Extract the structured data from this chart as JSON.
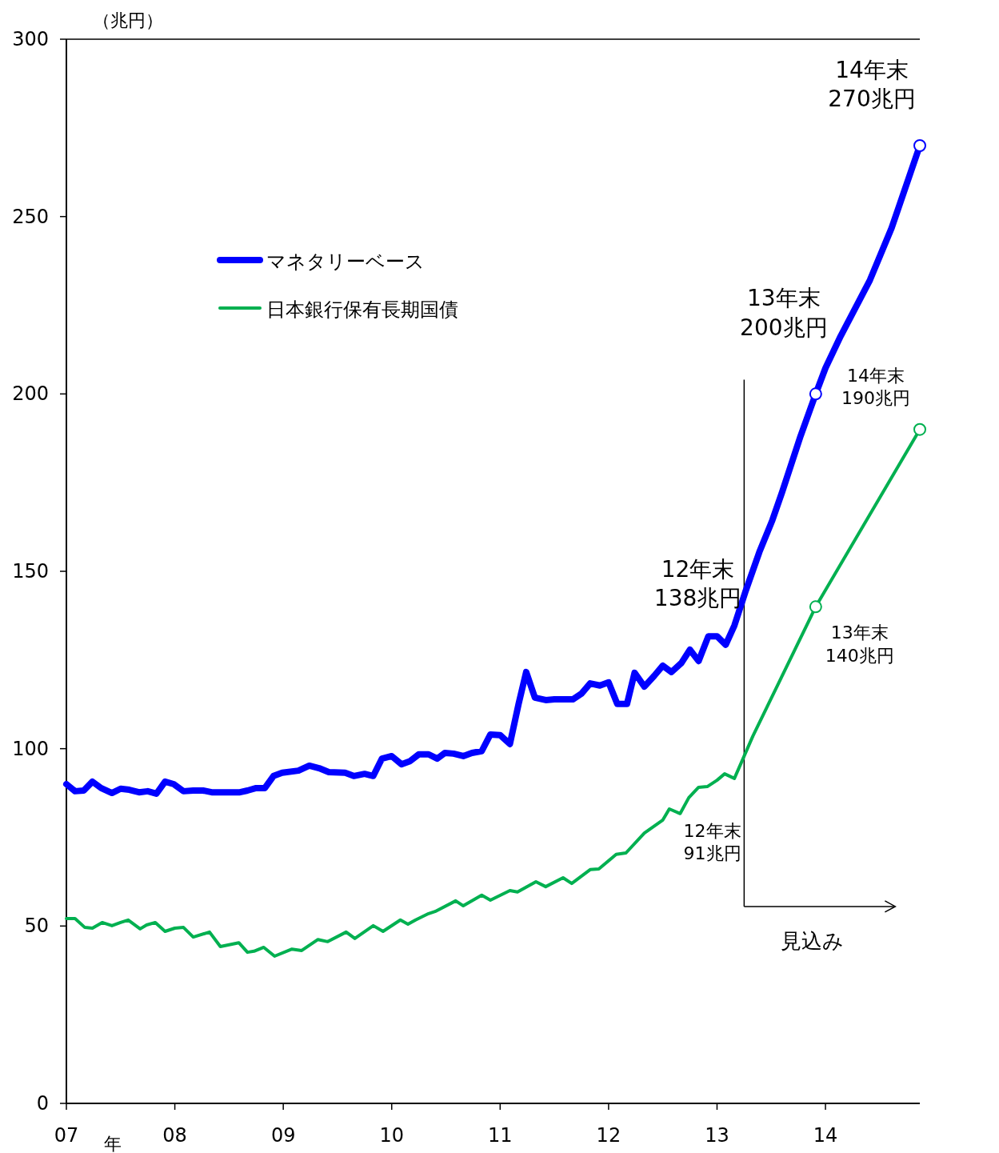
{
  "chart_data": {
    "type": "line",
    "ylabel": "（兆円）",
    "xlabel": "年",
    "xlim": [
      2007,
      2014.87
    ],
    "xticks": [
      {
        "value": 2007,
        "label": "07"
      },
      {
        "value": 2008,
        "label": "08"
      },
      {
        "value": 2009,
        "label": "09"
      },
      {
        "value": 2010,
        "label": "10"
      },
      {
        "value": 2011,
        "label": "11"
      },
      {
        "value": 2012,
        "label": "12"
      },
      {
        "value": 2013,
        "label": "13"
      },
      {
        "value": 2014,
        "label": "14"
      }
    ],
    "ylim": [
      0,
      300
    ],
    "yticks": [
      0,
      50,
      100,
      150,
      200,
      250,
      300
    ],
    "grid": false,
    "legend": "top left",
    "marker": "none",
    "line_style": "solid",
    "series": [
      {
        "name": "マネタリーベース",
        "color": "#0000ff",
        "x": [
          2007,
          2007.08,
          2007.16,
          2007.24,
          2007.32,
          2007.42,
          2007.5,
          2007.58,
          2007.67,
          2007.75,
          2007.83,
          2007.91,
          2007.99,
          2008.08,
          2008.17,
          2008.26,
          2008.34,
          2008.6,
          2008.67,
          2008.75,
          2008.83,
          2008.91,
          2008.99,
          2009.14,
          2009.24,
          2009.33,
          2009.42,
          2009.57,
          2009.65,
          2009.75,
          2009.83,
          2009.91,
          2010,
          2010.09,
          2010.17,
          2010.25,
          2010.34,
          2010.42,
          2010.49,
          2010.57,
          2010.66,
          2010.74,
          2010.83,
          2010.91,
          2011,
          2011.09,
          2011.17,
          2011.24,
          2011.32,
          2011.42,
          2011.5,
          2011.67,
          2011.75,
          2011.83,
          2011.92,
          2012,
          2012.08,
          2012.17,
          2012.24,
          2012.33,
          2012.42,
          2012.5,
          2012.58,
          2012.67,
          2012.75,
          2012.83,
          2012.92,
          2013,
          2013.08,
          2013.16,
          2013.26,
          2013.39,
          2013.51,
          2013.6,
          2013.77,
          2013.91,
          2014,
          2014.14,
          2014.41,
          2014.61,
          2014.87
        ],
        "values": [
          90,
          88,
          88.2,
          90.7,
          88.9,
          87.5,
          88.7,
          88.4,
          87.7,
          88,
          87.3,
          90.7,
          90,
          88,
          88.2,
          88.2,
          87.7,
          87.7,
          88.2,
          88.9,
          88.9,
          92.3,
          93.2,
          93.8,
          95.2,
          94.5,
          93.4,
          93.2,
          92.3,
          92.9,
          92.3,
          97.2,
          97.9,
          95.6,
          96.5,
          98.4,
          98.4,
          97.2,
          98.8,
          98.6,
          97.9,
          98.8,
          99.3,
          104,
          103.8,
          101.3,
          112.6,
          121.6,
          114.4,
          113.7,
          113.9,
          113.9,
          115.5,
          118.4,
          117.8,
          118.7,
          112.6,
          112.6,
          121.4,
          117.5,
          120.5,
          123.4,
          121.6,
          124.1,
          127.9,
          124.7,
          131.7,
          131.7,
          129.3,
          134.7,
          144.1,
          155.4,
          164.4,
          172.3,
          188.1,
          200,
          207.3,
          216.3,
          232.1,
          246.8,
          270
        ]
      },
      {
        "name": "日本銀行保有長期国債",
        "color": "#00b050",
        "x": [
          2007,
          2007.08,
          2007.17,
          2007.24,
          2007.33,
          2007.42,
          2007.5,
          2007.57,
          2007.68,
          2007.74,
          2007.82,
          2007.91,
          2008,
          2008.08,
          2008.17,
          2008.32,
          2008.42,
          2008.59,
          2008.67,
          2008.73,
          2008.82,
          2008.92,
          2009.08,
          2009.17,
          2009.32,
          2009.41,
          2009.58,
          2009.66,
          2009.83,
          2009.92,
          2010.08,
          2010.15,
          2010.22,
          2010.34,
          2010.4,
          2010.59,
          2010.66,
          2010.83,
          2010.91,
          2011.09,
          2011.16,
          2011.33,
          2011.42,
          2011.58,
          2011.66,
          2011.83,
          2011.91,
          2012.07,
          2012.16,
          2012.33,
          2012.5,
          2012.56,
          2012.66,
          2012.74,
          2012.83,
          2012.91,
          2013,
          2013.07,
          2013.16,
          2013.33,
          2013.91,
          2014.87
        ],
        "values": [
          52.1,
          52.1,
          49.6,
          49.4,
          51,
          50.1,
          51,
          51.7,
          49.2,
          50.3,
          51,
          48.5,
          49.4,
          49.6,
          46.9,
          48.3,
          44.2,
          45.3,
          42.6,
          42.9,
          44,
          41.5,
          43.5,
          43.1,
          46.2,
          45.6,
          48.3,
          46.5,
          50.1,
          48.5,
          51.7,
          50.5,
          51.7,
          53.5,
          54.1,
          57.1,
          55.7,
          58.7,
          57.3,
          60,
          59.6,
          62.5,
          61.1,
          63.6,
          62,
          65.9,
          66.1,
          70.2,
          70.6,
          76.2,
          79.9,
          83,
          81.7,
          86.2,
          89.1,
          89.3,
          91.1,
          92.9,
          91.6,
          103.5,
          140,
          190
        ]
      },
      {
        "type": "scatter",
        "marker": "circle",
        "color": "#0000ff",
        "x": [
          2013.91,
          2014.87
        ],
        "values": [
          200,
          270
        ]
      },
      {
        "type": "scatter",
        "marker": "circle",
        "color": "#00b050",
        "x": [
          2013.91,
          2014.87
        ],
        "values": [
          140,
          190
        ]
      }
    ],
    "ref_lines": [
      {
        "axis": "x",
        "value": 2013.25,
        "label": "見込み"
      }
    ],
    "annotations": [
      "12年末\n138兆円",
      {
        "text": "13年末\n200兆円",
        "x": 2013.91,
        "y": 200
      },
      {
        "text": "14年末\n270兆円",
        "x": 2014.87,
        "y": 270
      },
      {
        "text": "12年末\n91兆円",
        "x": 2012.92,
        "y": 91
      },
      {
        "text": "13年末\n140兆円",
        "x": 2013.91,
        "y": 140
      },
      {
        "text": "14年末\n190兆円",
        "x": 2014.87,
        "y": 190
      }
    ]
  }
}
